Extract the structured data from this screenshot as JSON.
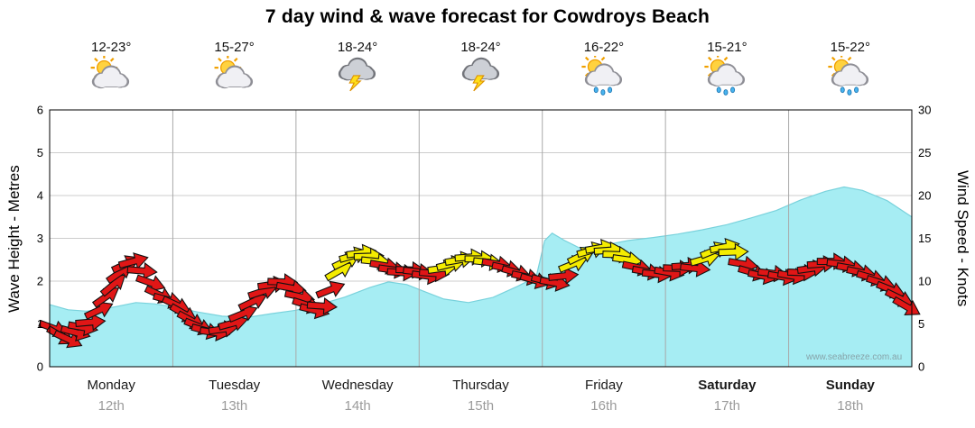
{
  "watermark": "www.seabreeze.com.au",
  "colors": {
    "wave_fill": "#a6edf3",
    "wave_stroke": "#79d2dc",
    "arrow_red": "#e01616",
    "arrow_yellow": "#f4ec00",
    "arrow_outline": "#111111",
    "grid": "#cccccc",
    "day_line": "#a9a9a9",
    "frame": "#000000"
  },
  "chart_data": {
    "type": "area",
    "title": "7 day wind & wave forecast for Cowdroys Beach",
    "y_left": {
      "label": "Wave Height - Metres",
      "min": 0,
      "max": 6,
      "ticks": [
        0,
        1,
        2,
        3,
        4,
        5,
        6
      ]
    },
    "y_right": {
      "label": "Wind Speed - Knots",
      "min": 0,
      "max": 30,
      "ticks": [
        0,
        5,
        10,
        15,
        20,
        25,
        30
      ]
    },
    "days": [
      {
        "name": "Monday",
        "date": "12th",
        "temp": "12-23°",
        "icon": "sun-cloud",
        "bold": false
      },
      {
        "name": "Tuesday",
        "date": "13th",
        "temp": "15-27°",
        "icon": "sun-cloud",
        "bold": false
      },
      {
        "name": "Wednesday",
        "date": "14th",
        "temp": "18-24°",
        "icon": "storm",
        "bold": false
      },
      {
        "name": "Thursday",
        "date": "15th",
        "temp": "18-24°",
        "icon": "storm",
        "bold": false
      },
      {
        "name": "Friday",
        "date": "16th",
        "temp": "16-22°",
        "icon": "sun-shower",
        "bold": false
      },
      {
        "name": "Saturday",
        "date": "17th",
        "temp": "15-21°",
        "icon": "sun-shower",
        "bold": true
      },
      {
        "name": "Sunday",
        "date": "18th",
        "temp": "15-22°",
        "icon": "sun-shower",
        "bold": true
      }
    ],
    "series": [
      {
        "name": "Wave Height",
        "axis": "left",
        "unit": "m",
        "format": "[day_t_0to7, metres]",
        "points": [
          [
            0,
            1.45
          ],
          [
            0.15,
            1.33
          ],
          [
            0.3,
            1.3
          ],
          [
            0.5,
            1.38
          ],
          [
            0.7,
            1.5
          ],
          [
            0.85,
            1.47
          ],
          [
            1.0,
            1.4
          ],
          [
            1.2,
            1.28
          ],
          [
            1.4,
            1.18
          ],
          [
            1.6,
            1.15
          ],
          [
            1.8,
            1.24
          ],
          [
            2.0,
            1.32
          ],
          [
            2.2,
            1.46
          ],
          [
            2.4,
            1.63
          ],
          [
            2.6,
            1.85
          ],
          [
            2.75,
            1.98
          ],
          [
            2.9,
            1.92
          ],
          [
            3.05,
            1.75
          ],
          [
            3.2,
            1.58
          ],
          [
            3.4,
            1.5
          ],
          [
            3.6,
            1.62
          ],
          [
            3.8,
            1.88
          ],
          [
            3.95,
            2.1
          ],
          [
            4.02,
            2.95
          ],
          [
            4.08,
            3.12
          ],
          [
            4.18,
            2.95
          ],
          [
            4.3,
            2.78
          ],
          [
            4.5,
            2.84
          ],
          [
            4.7,
            2.95
          ],
          [
            4.9,
            3.02
          ],
          [
            5.1,
            3.1
          ],
          [
            5.3,
            3.2
          ],
          [
            5.5,
            3.32
          ],
          [
            5.7,
            3.48
          ],
          [
            5.9,
            3.65
          ],
          [
            6.1,
            3.9
          ],
          [
            6.3,
            4.1
          ],
          [
            6.45,
            4.2
          ],
          [
            6.6,
            4.12
          ],
          [
            6.8,
            3.88
          ],
          [
            7.0,
            3.5
          ]
        ]
      },
      {
        "name": "Wind Speed & Direction",
        "axis": "right",
        "unit": "knots",
        "format": "[day_t_0to7, knots, angle_deg_cw_from_east, color r|y]",
        "arrows": [
          [
            0.03,
            4.5,
            20,
            "r"
          ],
          [
            0.09,
            3.6,
            30,
            "r"
          ],
          [
            0.15,
            3.2,
            25,
            "r"
          ],
          [
            0.21,
            4.0,
            15,
            "r"
          ],
          [
            0.27,
            4.6,
            10,
            "r"
          ],
          [
            0.33,
            5.2,
            -5,
            "r"
          ],
          [
            0.4,
            6.6,
            -25,
            "r"
          ],
          [
            0.46,
            8.2,
            -35,
            "r"
          ],
          [
            0.52,
            9.6,
            -40,
            "r"
          ],
          [
            0.57,
            11.0,
            -35,
            "r"
          ],
          [
            0.62,
            12.0,
            -25,
            "r"
          ],
          [
            0.68,
            12.3,
            -15,
            "r"
          ],
          [
            0.75,
            11.2,
            5,
            "r"
          ],
          [
            0.82,
            9.8,
            20,
            "r"
          ],
          [
            0.89,
            8.4,
            25,
            "r"
          ],
          [
            0.96,
            7.8,
            15,
            "r"
          ],
          [
            1.03,
            7.2,
            25,
            "r"
          ],
          [
            1.09,
            6.2,
            30,
            "r"
          ],
          [
            1.15,
            5.4,
            28,
            "r"
          ],
          [
            1.21,
            4.7,
            22,
            "r"
          ],
          [
            1.27,
            4.2,
            15,
            "r"
          ],
          [
            1.34,
            4.0,
            8,
            "r"
          ],
          [
            1.41,
            4.4,
            -8,
            "r"
          ],
          [
            1.49,
            5.1,
            -15,
            "r"
          ],
          [
            1.57,
            6.2,
            -22,
            "r"
          ],
          [
            1.65,
            7.6,
            -25,
            "r"
          ],
          [
            1.73,
            8.8,
            -18,
            "r"
          ],
          [
            1.81,
            9.6,
            -8,
            "r"
          ],
          [
            1.89,
            9.9,
            2,
            "r"
          ],
          [
            1.96,
            9.2,
            10,
            "r"
          ],
          [
            2.03,
            8.2,
            12,
            "r"
          ],
          [
            2.09,
            7.2,
            18,
            "r"
          ],
          [
            2.15,
            6.6,
            14,
            "r"
          ],
          [
            2.21,
            7.1,
            4,
            "r"
          ],
          [
            2.28,
            9.0,
            -22,
            "r"
          ],
          [
            2.35,
            11.2,
            -30,
            "y"
          ],
          [
            2.41,
            12.4,
            -26,
            "y"
          ],
          [
            2.47,
            13.0,
            -16,
            "y"
          ],
          [
            2.53,
            13.3,
            -8,
            "y"
          ],
          [
            2.59,
            12.9,
            -2,
            "y"
          ],
          [
            2.65,
            12.3,
            6,
            "y"
          ],
          [
            2.72,
            11.8,
            10,
            "r"
          ],
          [
            2.79,
            11.3,
            8,
            "r"
          ],
          [
            2.86,
            11.0,
            4,
            "r"
          ],
          [
            2.93,
            11.3,
            2,
            "r"
          ],
          [
            2.99,
            11.1,
            6,
            "r"
          ],
          [
            3.06,
            10.6,
            8,
            "r"
          ],
          [
            3.12,
            10.9,
            4,
            "r"
          ],
          [
            3.19,
            11.5,
            -8,
            "y"
          ],
          [
            3.26,
            12.0,
            -14,
            "y"
          ],
          [
            3.33,
            12.5,
            -10,
            "y"
          ],
          [
            3.41,
            12.8,
            -4,
            "y"
          ],
          [
            3.49,
            12.6,
            0,
            "y"
          ],
          [
            3.56,
            12.2,
            6,
            "y"
          ],
          [
            3.63,
            12.0,
            10,
            "r"
          ],
          [
            3.71,
            11.5,
            12,
            "r"
          ],
          [
            3.79,
            11.0,
            16,
            "r"
          ],
          [
            3.87,
            10.5,
            12,
            "r"
          ],
          [
            3.94,
            10.1,
            16,
            "r"
          ],
          [
            4.03,
            10.0,
            14,
            "r"
          ],
          [
            4.1,
            9.8,
            10,
            "r"
          ],
          [
            4.17,
            10.6,
            -6,
            "r"
          ],
          [
            4.25,
            12.0,
            -22,
            "y"
          ],
          [
            4.32,
            13.0,
            -26,
            "y"
          ],
          [
            4.4,
            13.6,
            -16,
            "y"
          ],
          [
            4.47,
            13.9,
            -10,
            "y"
          ],
          [
            4.54,
            13.6,
            -4,
            "y"
          ],
          [
            4.61,
            13.1,
            2,
            "y"
          ],
          [
            4.69,
            12.5,
            8,
            "y"
          ],
          [
            4.77,
            11.6,
            12,
            "r"
          ],
          [
            4.85,
            11.1,
            10,
            "r"
          ],
          [
            4.93,
            10.8,
            6,
            "r"
          ],
          [
            5.03,
            11.0,
            10,
            "r"
          ],
          [
            5.1,
            11.5,
            2,
            "r"
          ],
          [
            5.17,
            11.8,
            -4,
            "r"
          ],
          [
            5.24,
            11.5,
            6,
            "r"
          ],
          [
            5.32,
            12.6,
            -16,
            "y"
          ],
          [
            5.4,
            13.6,
            -22,
            "y"
          ],
          [
            5.48,
            14.0,
            -12,
            "y"
          ],
          [
            5.55,
            13.4,
            -2,
            "y"
          ],
          [
            5.63,
            12.0,
            10,
            "r"
          ],
          [
            5.71,
            11.0,
            16,
            "r"
          ],
          [
            5.79,
            10.6,
            12,
            "r"
          ],
          [
            5.87,
            10.9,
            6,
            "r"
          ],
          [
            5.95,
            10.5,
            10,
            "r"
          ],
          [
            6.03,
            10.6,
            10,
            "r"
          ],
          [
            6.11,
            11.0,
            2,
            "r"
          ],
          [
            6.19,
            11.5,
            -8,
            "r"
          ],
          [
            6.27,
            12.0,
            -4,
            "r"
          ],
          [
            6.35,
            12.3,
            0,
            "r"
          ],
          [
            6.43,
            12.0,
            6,
            "r"
          ],
          [
            6.51,
            11.5,
            10,
            "r"
          ],
          [
            6.59,
            11.0,
            12,
            "r"
          ],
          [
            6.67,
            10.4,
            16,
            "r"
          ],
          [
            6.75,
            9.8,
            18,
            "r"
          ],
          [
            6.83,
            9.0,
            22,
            "r"
          ],
          [
            6.9,
            8.0,
            26,
            "r"
          ],
          [
            6.96,
            7.0,
            30,
            "r"
          ]
        ]
      }
    ]
  }
}
